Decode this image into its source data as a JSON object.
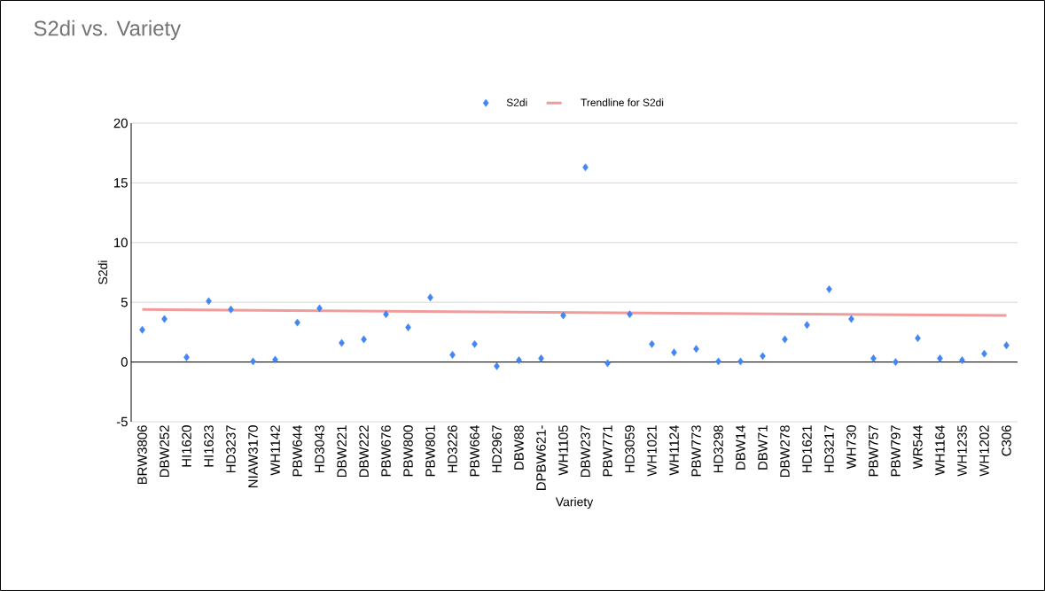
{
  "chart_data": {
    "type": "scatter",
    "title": "S2di vs. Variety",
    "xlabel": "Variety",
    "ylabel": "S2di",
    "categories": [
      "BRW3806",
      "DBW252",
      "HI1620",
      "HI1623",
      "HD3237",
      "NIAW3170",
      "WH1142",
      "PBW644",
      "HD3043",
      "DBW221",
      "DBW222",
      "PBW676",
      "PBW800",
      "PBW801",
      "HD3226",
      "PBW664",
      "HD2967",
      "DBW88",
      "DPBW621-",
      "WH1105",
      "DBW237",
      "PBW771",
      "HD3059",
      "WH1021",
      "WH1124",
      "PBW773",
      "HD3298",
      "DBW14",
      "DBW71",
      "DBW278",
      "HD1621",
      "HD3217",
      "WH730",
      "PBW757",
      "PBW797",
      "WR544",
      "WH1164",
      "WH1235",
      "WH1202",
      "C306"
    ],
    "series": [
      {
        "name": "S2di",
        "color": "#4285f4",
        "marker": "diamond",
        "values": [
          2.7,
          3.6,
          0.4,
          5.1,
          4.4,
          0.05,
          0.2,
          3.3,
          4.5,
          1.6,
          1.9,
          4.0,
          2.9,
          5.4,
          0.6,
          1.5,
          -0.35,
          0.15,
          0.3,
          3.9,
          16.3,
          -0.1,
          4.0,
          1.5,
          0.8,
          1.1,
          0.05,
          0.05,
          0.5,
          1.9,
          3.1,
          6.1,
          3.6,
          0.3,
          0,
          2.0,
          0.3,
          0.15,
          0.7,
          1.4
        ]
      },
      {
        "name": "Trendline for S2di",
        "type": "line",
        "color": "#f09c9c",
        "marker": "none",
        "line_style": "solid",
        "x": [
          "BRW3806",
          "C306"
        ],
        "values": [
          4.4,
          3.9
        ]
      }
    ],
    "ylim": [
      -5,
      20
    ],
    "yticks": [
      -5,
      0,
      5,
      10,
      15,
      20
    ],
    "grid": "y",
    "legend": "top"
  }
}
